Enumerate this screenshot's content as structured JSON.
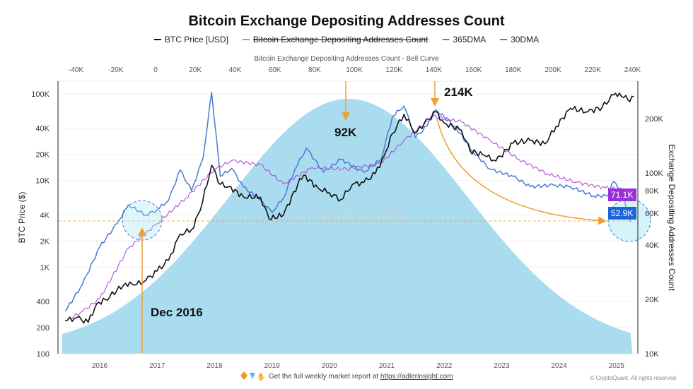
{
  "chart_data": {
    "type": "line",
    "title": "Bitcoin Exchange Depositing Addresses Count",
    "legend": [
      {
        "name": "BTC Price [USD]",
        "color": "#111111",
        "hidden": false
      },
      {
        "name": "Bitcoin Exchange Depositing Addresses Count",
        "color": "#9a9aa8",
        "hidden": true
      },
      {
        "name": "365DMA",
        "color": "#b44fd6",
        "hidden": false
      },
      {
        "name": "30DMA",
        "color": "#4a78d6",
        "hidden": false
      }
    ],
    "legend_position": "top",
    "top_axis": {
      "label": "Bitcoin Exchange Depositing Addresses Count - Bell Curve",
      "ticks": [
        "-40K",
        "-20K",
        "0",
        "20K",
        "40K",
        "60K",
        "80K",
        "100K",
        "120K",
        "140K",
        "160K",
        "180K",
        "200K",
        "220K",
        "240K"
      ],
      "range": [
        -50000,
        245000
      ]
    },
    "x_axis": {
      "ticks": [
        "2016",
        "2017",
        "2018",
        "2019",
        "2020",
        "2021",
        "2022",
        "2023",
        "2024",
        "2025"
      ],
      "range": [
        2015.35,
        2025.3
      ]
    },
    "y_left": {
      "label": "BTC Price ($)",
      "scale": "log",
      "ticks": [
        "100",
        "200",
        "400",
        "1K",
        "2K",
        "4K",
        "10K",
        "20K",
        "40K",
        "100K"
      ],
      "tick_values": [
        100,
        200,
        400,
        1000,
        2000,
        4000,
        10000,
        20000,
        40000,
        100000
      ],
      "range": [
        100,
        130000
      ]
    },
    "y_right": {
      "label": "Exchange Depositing Addresses Count",
      "scale": "log",
      "ticks": [
        "10K",
        "20K",
        "40K",
        "60K",
        "80K",
        "100K",
        "200K"
      ],
      "tick_values": [
        10000,
        20000,
        40000,
        60000,
        80000,
        100000,
        200000
      ],
      "range": [
        10000,
        300000
      ]
    },
    "grid": true,
    "series": [
      {
        "name": "BTC Price [USD]",
        "axis": "left",
        "color": "#111111",
        "x": [
          2015.4,
          2015.6,
          2015.8,
          2015.95,
          2016.1,
          2016.45,
          2016.6,
          2016.8,
          2017.0,
          2017.2,
          2017.4,
          2017.6,
          2017.75,
          2017.95,
          2018.1,
          2018.25,
          2018.5,
          2018.8,
          2018.95,
          2019.2,
          2019.45,
          2019.55,
          2019.8,
          2020.0,
          2020.2,
          2020.4,
          2020.6,
          2020.8,
          2020.95,
          2021.1,
          2021.3,
          2021.5,
          2021.65,
          2021.85,
          2022.0,
          2022.3,
          2022.45,
          2022.7,
          2022.9,
          2023.2,
          2023.5,
          2023.75,
          2023.95,
          2024.2,
          2024.5,
          2024.75,
          2024.95,
          2025.05,
          2025.2,
          2025.3
        ],
        "y": [
          240,
          260,
          230,
          380,
          420,
          650,
          620,
          700,
          900,
          1200,
          2400,
          2700,
          4500,
          15000,
          9000,
          8500,
          6500,
          6400,
          3600,
          4000,
          9000,
          11500,
          8200,
          7200,
          6000,
          9000,
          9500,
          12000,
          19000,
          35000,
          58000,
          35000,
          45000,
          62000,
          46000,
          38000,
          22000,
          19500,
          16800,
          27000,
          29000,
          26500,
          42000,
          68000,
          62000,
          70000,
          97000,
          102000,
          85000,
          92000
        ]
      },
      {
        "name": "365DMA",
        "axis": "right",
        "color": "#b44fd6",
        "x": [
          2015.4,
          2015.7,
          2016.0,
          2016.5,
          2017.0,
          2017.5,
          2018.0,
          2018.3,
          2018.8,
          2019.2,
          2019.7,
          2020.3,
          2020.9,
          2021.3,
          2021.8,
          2022.3,
          2022.8,
          2023.3,
          2023.8,
          2024.3,
          2024.8,
          2025.1,
          2025.25
        ],
        "y": [
          15000,
          17000,
          20000,
          38000,
          52000,
          72000,
          104000,
          116000,
          110000,
          86000,
          106000,
          104000,
          112000,
          150000,
          204000,
          190000,
          150000,
          118000,
          98000,
          88000,
          82000,
          80000,
          71100
        ]
      },
      {
        "name": "30DMA",
        "axis": "right",
        "color": "#4a78d6",
        "x": [
          2015.4,
          2015.7,
          2016.0,
          2016.3,
          2016.5,
          2016.8,
          2017.0,
          2017.2,
          2017.4,
          2017.6,
          2017.8,
          2017.95,
          2018.1,
          2018.3,
          2018.5,
          2018.8,
          2019.0,
          2019.2,
          2019.4,
          2019.6,
          2019.9,
          2020.2,
          2020.6,
          2020.9,
          2021.1,
          2021.3,
          2021.5,
          2021.7,
          2021.85,
          2022.2,
          2022.5,
          2022.8,
          2023.2,
          2023.5,
          2023.9,
          2024.2,
          2024.6,
          2024.85,
          2024.95,
          2025.1,
          2025.25
        ],
        "y": [
          17000,
          24000,
          38600,
          52000,
          66000,
          58000,
          62000,
          70000,
          103000,
          79000,
          120000,
          277000,
          95000,
          105000,
          83000,
          70000,
          60000,
          72000,
          104000,
          136000,
          100000,
          118000,
          100000,
          118000,
          204000,
          233000,
          156000,
          180000,
          222000,
          178000,
          130000,
          104000,
          95000,
          83000,
          85000,
          83000,
          74000,
          74000,
          89000,
          75000,
          52900
        ]
      }
    ],
    "bell_curve": {
      "mean": 97000,
      "sd": 60000,
      "color": "#a9dcef"
    },
    "annotations": [
      {
        "text": "92K"
      },
      {
        "text": "214K"
      },
      {
        "text": "Dec 2016"
      }
    ],
    "value_labels": [
      {
        "text": "71.1K",
        "color": "#9b2fd6"
      },
      {
        "text": "52.9K",
        "color": "#1d64db"
      }
    ],
    "accent_color": "#f0a030",
    "watermark": "CryptoQuant"
  },
  "footer": {
    "icons": [
      "orange-diamond-icon",
      "blue-gem-icon",
      "raised-hands-icon"
    ],
    "text": "Get the full weekly market report at ",
    "link": "https://adlerinsight.com",
    "copyright": "© CryptoQuant. All rights reserved"
  }
}
